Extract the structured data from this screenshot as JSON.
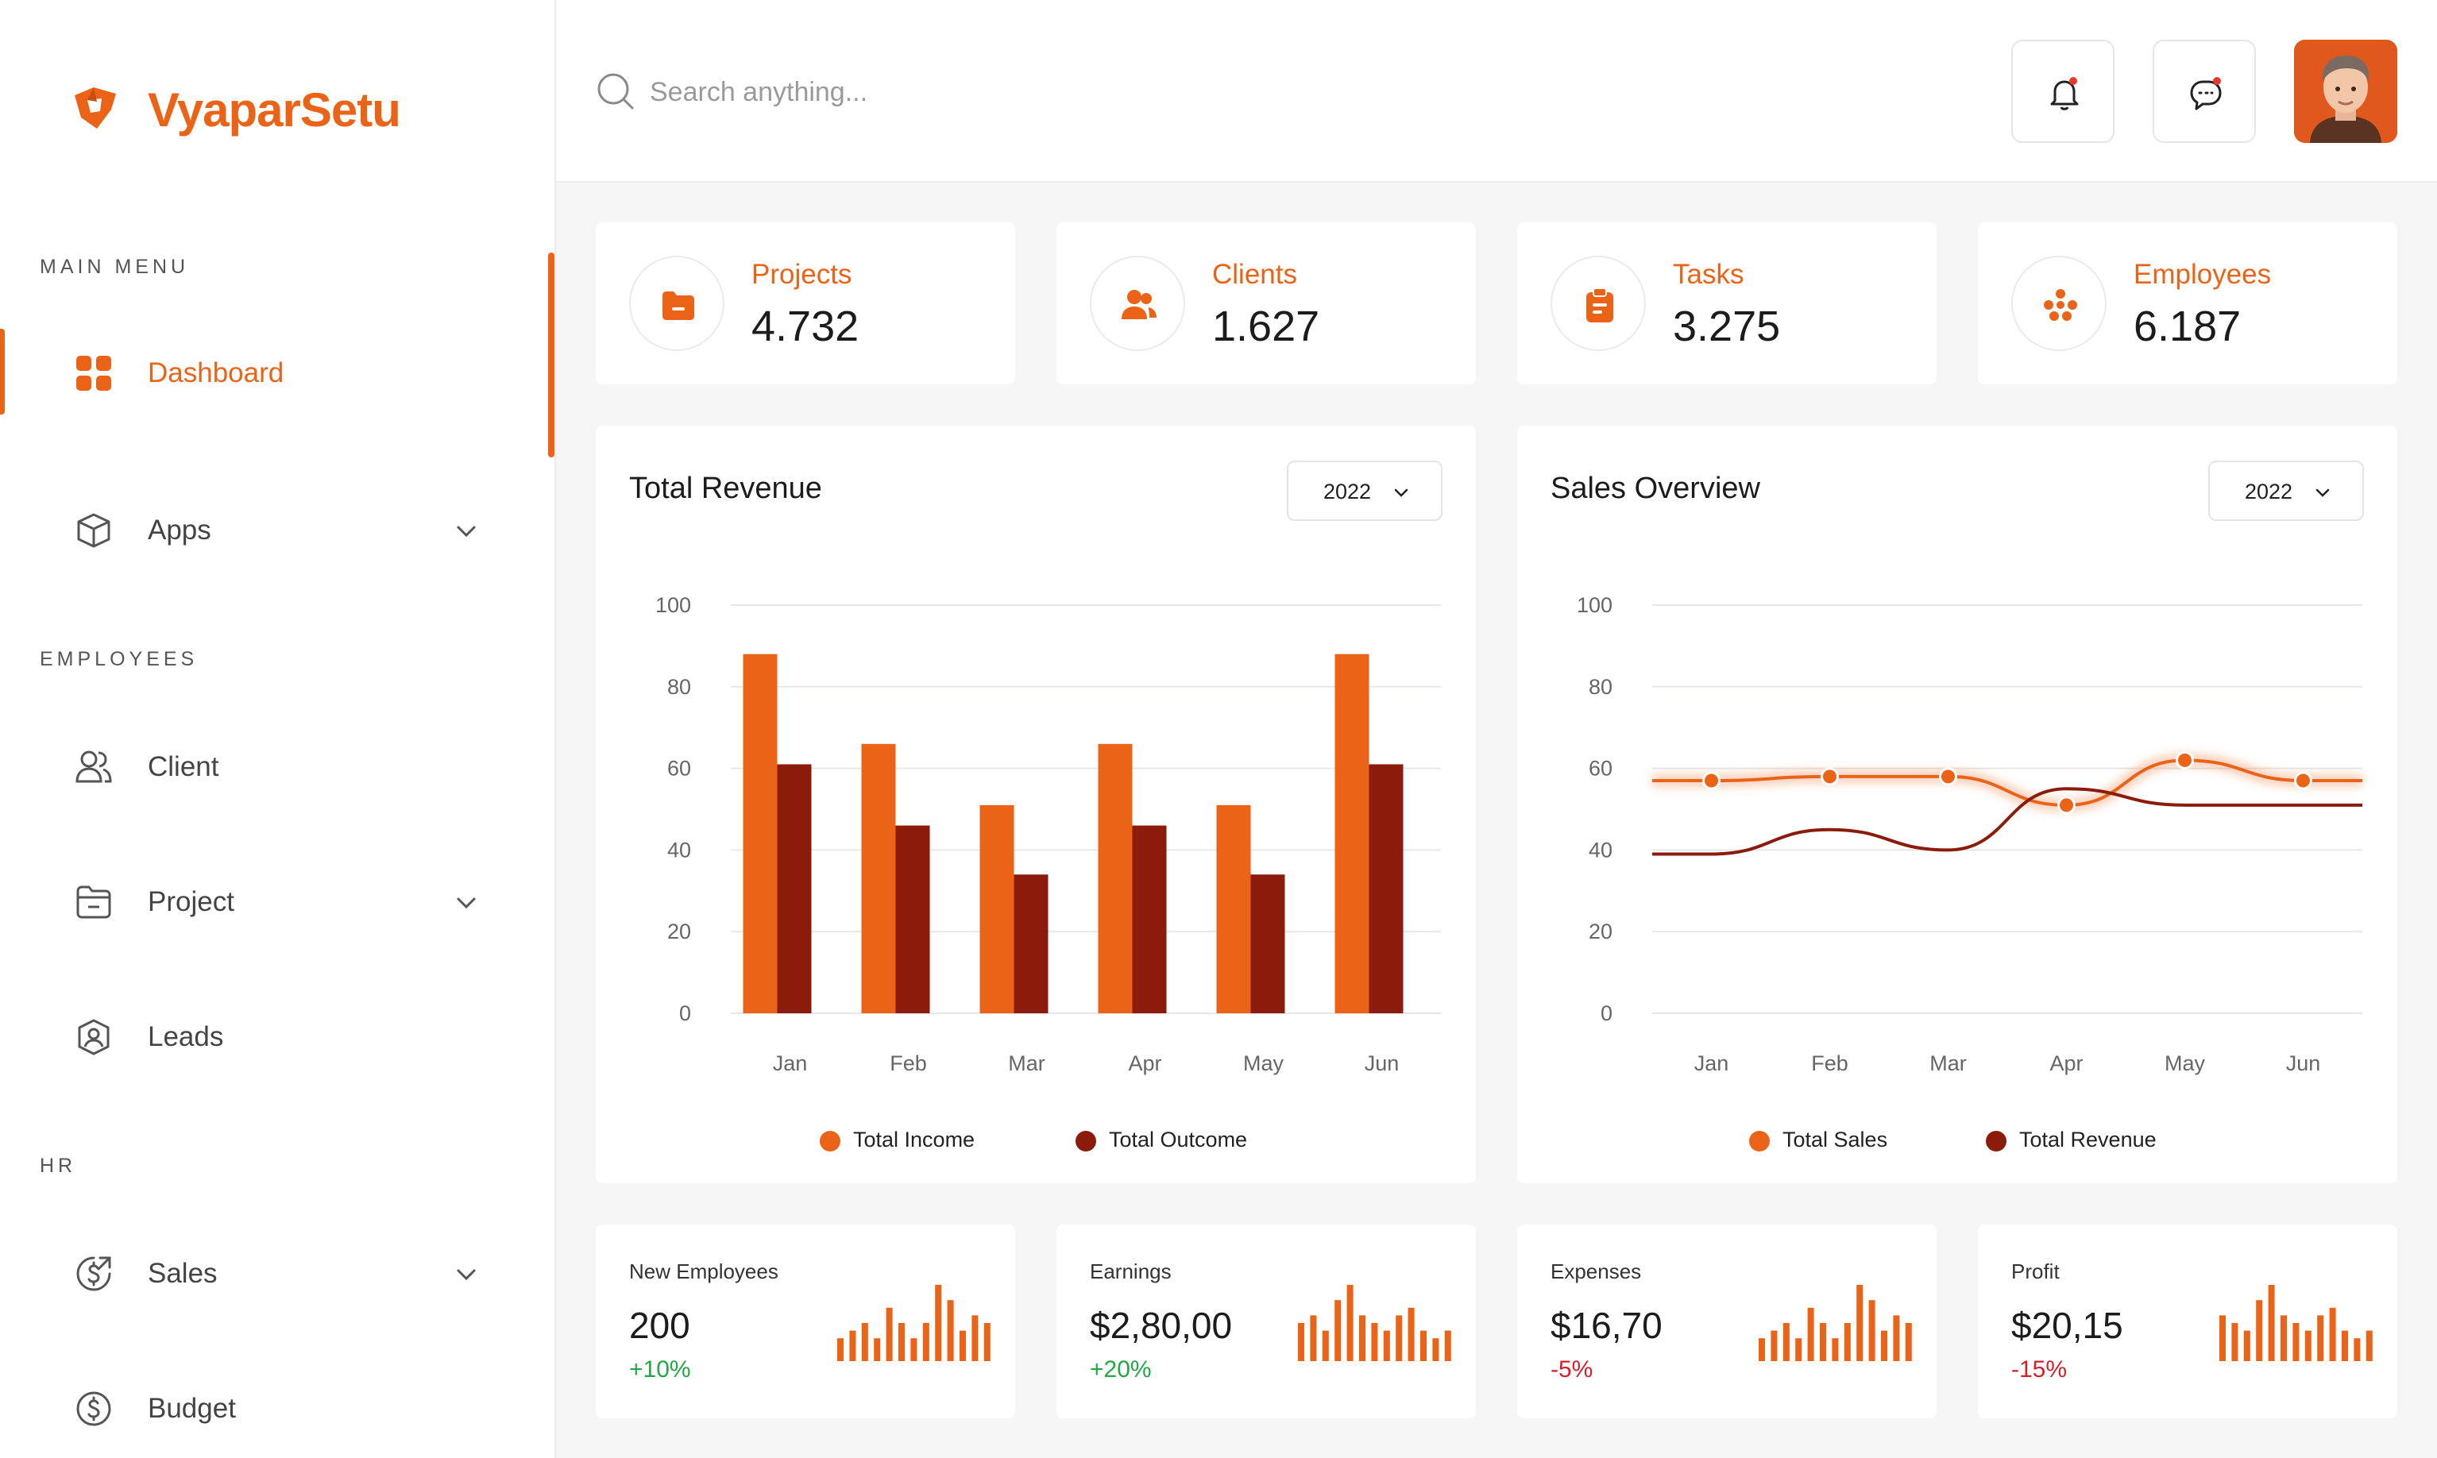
{
  "brand": {
    "name": "VyaparSetu"
  },
  "sidebar": {
    "sections": [
      {
        "label": "MAIN MENU",
        "items": [
          {
            "label": "Dashboard",
            "icon": "grid-icon",
            "active": true,
            "expandable": false
          },
          {
            "label": "Apps",
            "icon": "cube-icon",
            "active": false,
            "expandable": true
          }
        ]
      },
      {
        "label": "EMPLOYEES",
        "items": [
          {
            "label": "Client",
            "icon": "users-icon",
            "active": false,
            "expandable": false
          },
          {
            "label": "Project",
            "icon": "folder-icon",
            "active": false,
            "expandable": true
          },
          {
            "label": "Leads",
            "icon": "shield-user-icon",
            "active": false,
            "expandable": false
          }
        ]
      },
      {
        "label": "HR",
        "items": [
          {
            "label": "Sales",
            "icon": "dollar-arrow-icon",
            "active": false,
            "expandable": true
          },
          {
            "label": "Budget",
            "icon": "dollar-circle-icon",
            "active": false,
            "expandable": false
          }
        ]
      }
    ]
  },
  "header": {
    "search_placeholder": "Search anything...",
    "notification_icon": "bell-icon",
    "message_icon": "chat-icon"
  },
  "stats": [
    {
      "label": "Projects",
      "value": "4.732",
      "icon": "folder-icon"
    },
    {
      "label": "Clients",
      "value": "1.627",
      "icon": "users-icon"
    },
    {
      "label": "Tasks",
      "value": "3.275",
      "icon": "clipboard-icon"
    },
    {
      "label": "Employees",
      "value": "6.187",
      "icon": "team-icon"
    }
  ],
  "revenue": {
    "title": "Total Revenue",
    "year": "2022",
    "legend": [
      "Total Income",
      "Total Outcome"
    ]
  },
  "sales": {
    "title": "Sales Overview",
    "year": "2022",
    "legend": [
      "Total Sales",
      "Total Revenue"
    ]
  },
  "colors": {
    "accent": "#ea6317",
    "dark": "#8b1c0c",
    "up": "#22a845",
    "down": "#d4202c"
  },
  "chart_data": [
    {
      "type": "bar",
      "title": "Total Revenue",
      "categories": [
        "Jan",
        "Feb",
        "Mar",
        "Apr",
        "May",
        "Jun"
      ],
      "yticks": [
        "0",
        "20",
        "40",
        "60",
        "80",
        "100"
      ],
      "ylim": [
        0,
        100
      ],
      "grid": true,
      "legend_position": "bottom-center",
      "series": [
        {
          "name": "Total Income",
          "color": "#ea6317",
          "values": [
            88,
            66,
            51,
            66,
            51,
            88
          ]
        },
        {
          "name": "Total Outcome",
          "color": "#8b1c0c",
          "values": [
            61,
            46,
            34,
            46,
            34,
            61
          ]
        }
      ]
    },
    {
      "type": "line",
      "title": "Sales Overview",
      "categories": [
        "Jan",
        "Feb",
        "Mar",
        "Apr",
        "May",
        "Jun"
      ],
      "yticks": [
        "0",
        "20",
        "40",
        "60",
        "80",
        "100"
      ],
      "ylim": [
        0,
        100
      ],
      "grid": true,
      "legend_position": "bottom-center",
      "series": [
        {
          "name": "Total Sales",
          "color": "#ea6317",
          "values": [
            57,
            58,
            58,
            51,
            62,
            57
          ],
          "markers": true
        },
        {
          "name": "Total Revenue",
          "color": "#8b1c0c",
          "values": [
            39,
            45,
            40,
            55,
            51,
            51
          ],
          "markers": false
        }
      ]
    },
    {
      "type": "bar",
      "title": "",
      "series": [
        {
          "name": "",
          "values": [
            3,
            4,
            5,
            3,
            7,
            5,
            3,
            5,
            10,
            8,
            4,
            6,
            5
          ]
        }
      ]
    },
    {
      "type": "bar",
      "title": "",
      "series": [
        {
          "name": "",
          "values": [
            5,
            6,
            4,
            8,
            10,
            6,
            5,
            4,
            6,
            7,
            4,
            3,
            4
          ]
        }
      ]
    },
    {
      "type": "bar",
      "title": "",
      "series": [
        {
          "name": "",
          "values": [
            3,
            4,
            5,
            3,
            7,
            5,
            3,
            5,
            10,
            8,
            4,
            6,
            5
          ]
        }
      ]
    },
    {
      "type": "bar",
      "title": "",
      "series": [
        {
          "name": "",
          "values": [
            6,
            5,
            4,
            8,
            10,
            6,
            5,
            4,
            6,
            7,
            4,
            3,
            4
          ]
        }
      ]
    }
  ],
  "mini_cards": [
    {
      "label": "New Employees",
      "value": "200",
      "change": "+10%",
      "direction": "up"
    },
    {
      "label": "Earnings",
      "value": "$2,80,00",
      "change": "+20%",
      "direction": "up"
    },
    {
      "label": "Expenses",
      "value": "$16,70",
      "change": "-5%",
      "direction": "down"
    },
    {
      "label": "Profit",
      "value": "$20,15",
      "change": "-15%",
      "direction": "down"
    }
  ]
}
